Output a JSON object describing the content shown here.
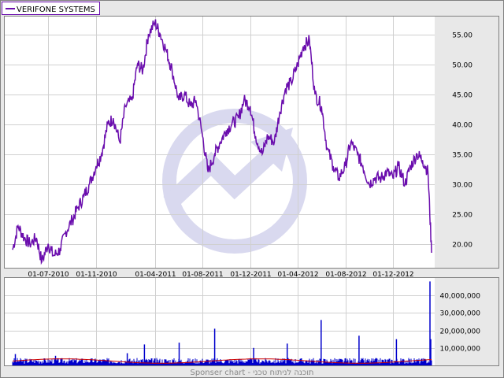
{
  "colors": {
    "price_line": "#6a0dad",
    "volume_bar": "#0000cc",
    "moving_average": "#cc0000",
    "frame_border": "#808080",
    "watermark": "#dcdcf0"
  },
  "footer": {
    "label": "Sponser chart - תוכנה לניתוח טכני"
  },
  "chart_data": [
    {
      "type": "line",
      "legend": [
        "VERIFONE SYSTEMS"
      ],
      "legend_position": "top-left",
      "x_tick_labels": [
        "01-07-2010",
        "01-11-2010",
        "01-04-2011",
        "01-08-2011",
        "01-12-2011",
        "01-04-2012",
        "01-08-2012",
        "01-12-2012"
      ],
      "y_tick_labels": [
        "20.00",
        "25.00",
        "30.00",
        "35.00",
        "40.00",
        "45.00",
        "50.00",
        "55.00"
      ],
      "y_ticks": [
        20,
        25,
        30,
        35,
        40,
        45,
        50,
        55
      ],
      "ylim": [
        16,
        58
      ],
      "grid": true,
      "series": [
        {
          "name": "VERIFONE SYSTEMS",
          "x": [
            "2010-04-01",
            "2010-04-15",
            "2010-05-01",
            "2010-05-15",
            "2010-06-01",
            "2010-06-15",
            "2010-07-01",
            "2010-07-15",
            "2010-08-01",
            "2010-08-15",
            "2010-09-01",
            "2010-09-15",
            "2010-10-01",
            "2010-10-15",
            "2010-11-01",
            "2010-11-15",
            "2010-12-01",
            "2010-12-15",
            "2011-01-01",
            "2011-01-15",
            "2011-02-01",
            "2011-02-15",
            "2011-03-01",
            "2011-03-15",
            "2011-04-01",
            "2011-04-15",
            "2011-05-01",
            "2011-05-15",
            "2011-06-01",
            "2011-06-15",
            "2011-07-01",
            "2011-07-15",
            "2011-08-01",
            "2011-08-15",
            "2011-09-01",
            "2011-09-15",
            "2011-10-01",
            "2011-10-15",
            "2011-11-01",
            "2011-11-15",
            "2011-12-01",
            "2011-12-15",
            "2012-01-01",
            "2012-01-15",
            "2012-02-01",
            "2012-02-15",
            "2012-03-01",
            "2012-03-15",
            "2012-04-01",
            "2012-04-15",
            "2012-05-01",
            "2012-05-15",
            "2012-06-01",
            "2012-06-15",
            "2012-07-01",
            "2012-07-15",
            "2012-08-01",
            "2012-08-15",
            "2012-09-01",
            "2012-09-15",
            "2012-10-01",
            "2012-10-15",
            "2012-11-01",
            "2012-11-15",
            "2012-12-01",
            "2012-12-15",
            "2013-01-01",
            "2013-01-15",
            "2013-02-01",
            "2013-02-15",
            "2013-03-01",
            "2013-03-10"
          ],
          "values": [
            19,
            23,
            21,
            20,
            21,
            17,
            20,
            18,
            19,
            22,
            24,
            26,
            28,
            30,
            33,
            35,
            40,
            41,
            37,
            43,
            44,
            50,
            49,
            55,
            57,
            55,
            52,
            49,
            44,
            45,
            43,
            44,
            38,
            32,
            35,
            37,
            39,
            40,
            41,
            44,
            43,
            38,
            35,
            38,
            37,
            42,
            46,
            47,
            50,
            53,
            54,
            45,
            43,
            36,
            33,
            31,
            33,
            37,
            35,
            33,
            30,
            31,
            31,
            32,
            31,
            33,
            30,
            33,
            35,
            34,
            32,
            18.5
          ]
        }
      ]
    },
    {
      "type": "bar",
      "legend": [],
      "y_tick_labels": [
        "10,000,000",
        "20,000,000",
        "30,000,000",
        "40,000,000"
      ],
      "y_ticks": [
        10000000,
        20000000,
        30000000,
        40000000
      ],
      "ylim": [
        0,
        50000000
      ],
      "grid": true,
      "baseline_daily_volume": 2500000,
      "volume_spikes": [
        {
          "x": "2010-04-08",
          "value": 6500000
        },
        {
          "x": "2010-07-20",
          "value": 5500000
        },
        {
          "x": "2011-01-20",
          "value": 7000000
        },
        {
          "x": "2011-03-05",
          "value": 12000000
        },
        {
          "x": "2011-06-02",
          "value": 13000000
        },
        {
          "x": "2011-09-01",
          "value": 21000000
        },
        {
          "x": "2011-12-10",
          "value": 10000000
        },
        {
          "x": "2012-03-05",
          "value": 12500000
        },
        {
          "x": "2012-05-31",
          "value": 26000000
        },
        {
          "x": "2012-09-05",
          "value": 17000000
        },
        {
          "x": "2012-12-10",
          "value": 15000000
        },
        {
          "x": "2013-03-06",
          "value": 48000000
        },
        {
          "x": "2013-03-08",
          "value": 15000000
        }
      ]
    }
  ]
}
